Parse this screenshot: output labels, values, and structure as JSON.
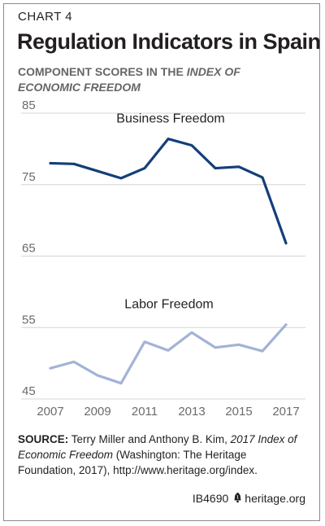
{
  "kicker": "CHART 4",
  "title": "Regulation Indicators in Spain",
  "subtitle_lead": "COMPONENT SCORES IN THE ",
  "subtitle_italic": "INDEX OF ECONOMIC FREEDOM",
  "source": {
    "label": "SOURCE:",
    "text_a": " Terry Miller and Anthony B. Kim, ",
    "text_italic": "2017 Index of Economic Freedom",
    "text_b": " (Washington: The Heritage Foundation, 2017), http://www.heritage.org/index."
  },
  "footer": {
    "code": "IB4690",
    "site": "heritage.org",
    "icon": "liberty-bell-icon"
  },
  "colors": {
    "business": "#133f7a",
    "labor": "#a3b3d6",
    "grid": "#d4d4d4",
    "axis_text": "#6b6b6b"
  },
  "chart_data": {
    "type": "line",
    "x": [
      2007,
      2008,
      2009,
      2010,
      2011,
      2012,
      2013,
      2014,
      2015,
      2016,
      2017
    ],
    "xticks": [
      "2007",
      "2009",
      "2011",
      "2013",
      "2015",
      "2017"
    ],
    "yticks": [
      "85",
      "75",
      "65",
      "55",
      "45"
    ],
    "ylim": [
      45,
      85
    ],
    "grid": true,
    "series": [
      {
        "name": "Business Freedom",
        "values": [
          78.0,
          77.9,
          76.9,
          75.9,
          77.3,
          81.4,
          80.5,
          77.3,
          77.5,
          76.0,
          66.8
        ]
      },
      {
        "name": "Labor Freedom",
        "values": [
          49.3,
          50.2,
          48.3,
          47.2,
          53.0,
          51.8,
          54.3,
          52.2,
          52.6,
          51.7,
          55.4
        ]
      }
    ]
  }
}
